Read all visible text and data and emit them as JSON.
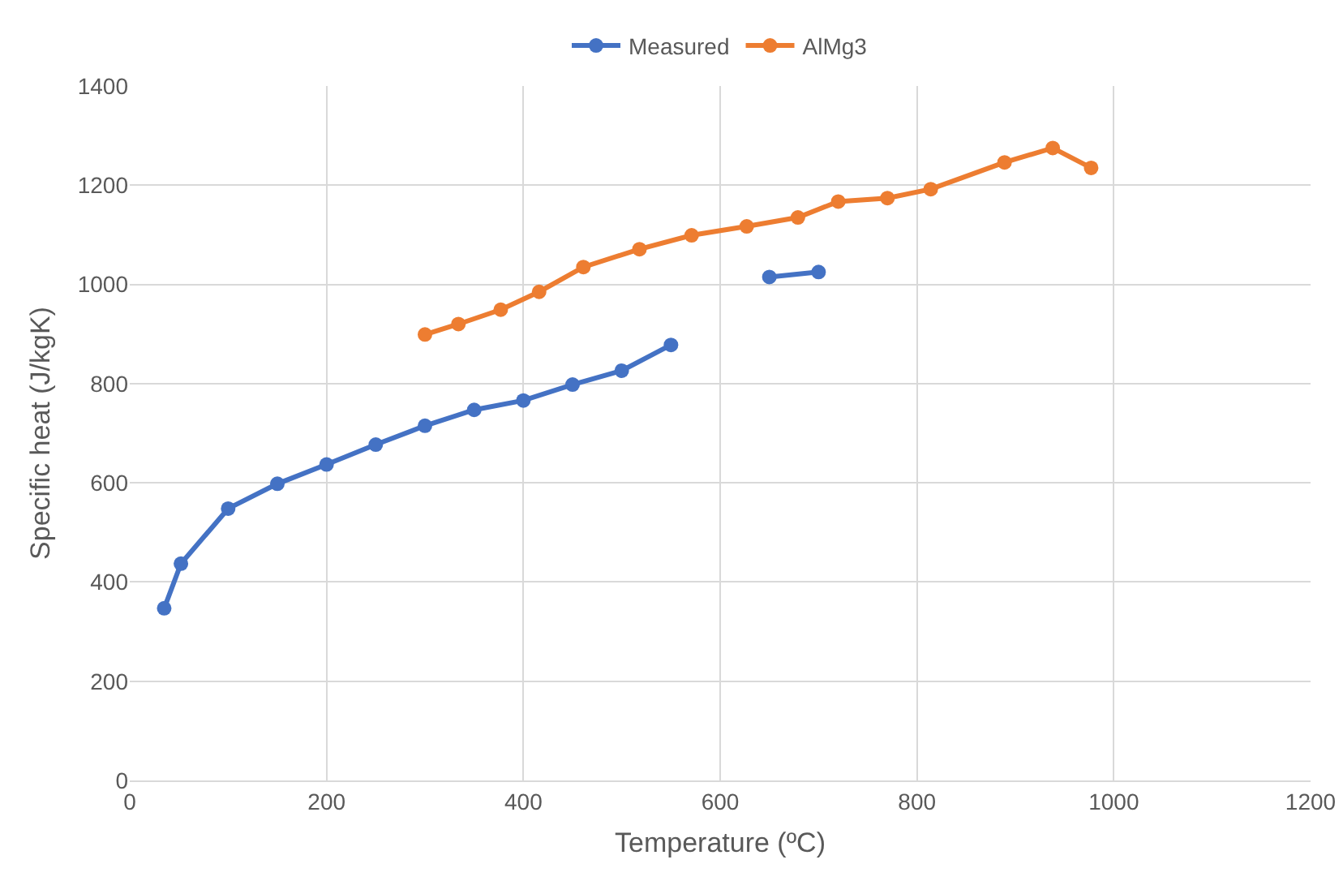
{
  "chart_data": {
    "type": "line",
    "xlabel": "Temperature (ºC)",
    "ylabel": "Specific heat (J/kgK)",
    "xlim": [
      0,
      1200
    ],
    "xticks": [
      0,
      200,
      400,
      600,
      800,
      1000,
      1200
    ],
    "ylim": [
      0,
      1400
    ],
    "yticks": [
      0,
      200,
      400,
      600,
      800,
      1000,
      1200,
      1400
    ],
    "grid": true,
    "legend": "top",
    "marker": "circle",
    "line_style": "solid",
    "series": [
      {
        "name": "Measured",
        "color": "#4472c4",
        "x": [
          35,
          52,
          100,
          150,
          200,
          250,
          300,
          350,
          400,
          450,
          500,
          550,
          600,
          650,
          700
        ],
        "values": [
          347,
          437,
          548,
          598,
          637,
          677,
          715,
          747,
          766,
          798,
          826,
          878,
          null,
          1015,
          1025
        ]
      },
      {
        "name": "AlMg3",
        "color": "#ed7d31",
        "x": [
          300,
          334,
          377,
          416,
          461,
          518,
          571,
          627,
          679,
          720,
          770,
          814,
          889,
          938,
          977
        ],
        "values": [
          899,
          920,
          949,
          985,
          1035,
          1071,
          1099,
          1117,
          1135,
          1167,
          1174,
          1192,
          1246,
          1275,
          1235
        ]
      }
    ]
  }
}
